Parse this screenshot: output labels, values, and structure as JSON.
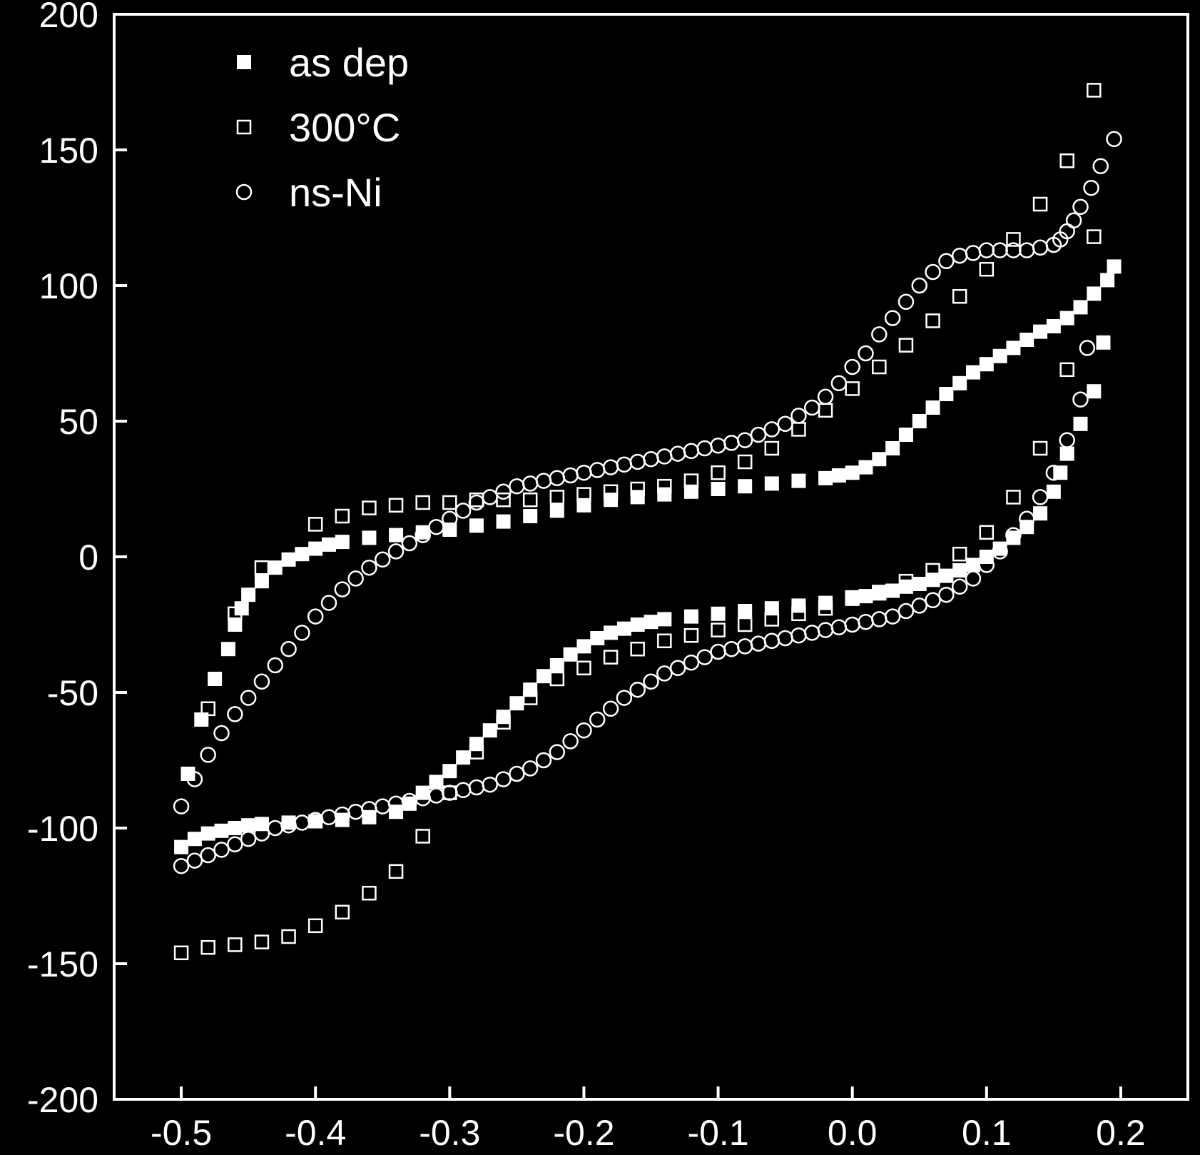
{
  "chart_data": {
    "type": "scatter",
    "xlim": [
      -0.55,
      0.25
    ],
    "ylim": [
      -200,
      200
    ],
    "x_ticks": [
      "-0.5",
      "-0.4",
      "-0.3",
      "-0.2",
      "-0.1",
      "0.0",
      "0.1",
      "0.2"
    ],
    "y_ticks": [
      "200",
      "150",
      "100",
      "50",
      "0",
      "-50",
      "-100",
      "-150",
      "-200"
    ],
    "grid": false,
    "legend_position": "top-left",
    "series": [
      {
        "name": "as dep",
        "marker": "filled-square",
        "points": [
          [
            -0.5,
            -107
          ],
          [
            -0.49,
            -104
          ],
          [
            -0.48,
            -102
          ],
          [
            -0.47,
            -101
          ],
          [
            -0.46,
            -100
          ],
          [
            -0.45,
            -99
          ],
          [
            -0.44,
            -98.5
          ],
          [
            -0.42,
            -98
          ],
          [
            -0.4,
            -97.5
          ],
          [
            -0.38,
            -97
          ],
          [
            -0.36,
            -96
          ],
          [
            -0.34,
            -94
          ],
          [
            -0.33,
            -91
          ],
          [
            -0.32,
            -87
          ],
          [
            -0.31,
            -83
          ],
          [
            -0.3,
            -79
          ],
          [
            -0.29,
            -74
          ],
          [
            -0.28,
            -69
          ],
          [
            -0.27,
            -64
          ],
          [
            -0.26,
            -59
          ],
          [
            -0.25,
            -54
          ],
          [
            -0.24,
            -49
          ],
          [
            -0.23,
            -44
          ],
          [
            -0.22,
            -40
          ],
          [
            -0.21,
            -36
          ],
          [
            -0.2,
            -33
          ],
          [
            -0.19,
            -30
          ],
          [
            -0.18,
            -28
          ],
          [
            -0.17,
            -26.5
          ],
          [
            -0.16,
            -25
          ],
          [
            -0.15,
            -24
          ],
          [
            -0.14,
            -23
          ],
          [
            -0.12,
            -22
          ],
          [
            -0.1,
            -21
          ],
          [
            -0.08,
            -20
          ],
          [
            -0.06,
            -19
          ],
          [
            -0.04,
            -18
          ],
          [
            -0.02,
            -17
          ],
          [
            0.0,
            -15.5
          ],
          [
            0.01,
            -14.5
          ],
          [
            0.02,
            -13.5
          ],
          [
            0.03,
            -12.5
          ],
          [
            0.04,
            -11
          ],
          [
            0.05,
            -10
          ],
          [
            0.06,
            -8.5
          ],
          [
            0.07,
            -7
          ],
          [
            0.08,
            -5
          ],
          [
            0.09,
            -3
          ],
          [
            0.1,
            0
          ],
          [
            0.11,
            3
          ],
          [
            0.12,
            7
          ],
          [
            0.13,
            11
          ],
          [
            0.14,
            16
          ],
          [
            0.15,
            24
          ],
          [
            0.155,
            31
          ],
          [
            0.16,
            38
          ],
          [
            0.17,
            49
          ],
          [
            0.18,
            61
          ],
          [
            0.187,
            79
          ],
          [
            0.195,
            107
          ],
          [
            0.19,
            102
          ],
          [
            0.18,
            97
          ],
          [
            0.17,
            92
          ],
          [
            0.16,
            88
          ],
          [
            0.15,
            85
          ],
          [
            0.14,
            83
          ],
          [
            0.13,
            80
          ],
          [
            0.12,
            77
          ],
          [
            0.11,
            74
          ],
          [
            0.1,
            71
          ],
          [
            0.09,
            68
          ],
          [
            0.08,
            64
          ],
          [
            0.07,
            60
          ],
          [
            0.06,
            55
          ],
          [
            0.05,
            50
          ],
          [
            0.04,
            45
          ],
          [
            0.03,
            40
          ],
          [
            0.02,
            36
          ],
          [
            0.01,
            33
          ],
          [
            0.0,
            31
          ],
          [
            -0.01,
            30
          ],
          [
            -0.02,
            29
          ],
          [
            -0.04,
            28
          ],
          [
            -0.06,
            27
          ],
          [
            -0.08,
            26
          ],
          [
            -0.1,
            25
          ],
          [
            -0.12,
            24
          ],
          [
            -0.14,
            23
          ],
          [
            -0.16,
            22
          ],
          [
            -0.18,
            21
          ],
          [
            -0.2,
            19
          ],
          [
            -0.22,
            17
          ],
          [
            -0.24,
            15
          ],
          [
            -0.26,
            13
          ],
          [
            -0.28,
            11.5
          ],
          [
            -0.3,
            10
          ],
          [
            -0.32,
            9
          ],
          [
            -0.34,
            8
          ],
          [
            -0.36,
            7
          ],
          [
            -0.38,
            5.5
          ],
          [
            -0.39,
            4.5
          ],
          [
            -0.4,
            3
          ],
          [
            -0.41,
            1
          ],
          [
            -0.42,
            -1
          ],
          [
            -0.43,
            -4
          ],
          [
            -0.44,
            -9
          ],
          [
            -0.45,
            -14
          ],
          [
            -0.455,
            -19
          ],
          [
            -0.46,
            -25
          ],
          [
            -0.465,
            -34
          ],
          [
            -0.475,
            -45
          ],
          [
            -0.485,
            -60
          ],
          [
            -0.495,
            -80
          ]
        ]
      },
      {
        "name": "300°C",
        "marker": "open-square",
        "points": [
          [
            -0.5,
            -146
          ],
          [
            -0.48,
            -144
          ],
          [
            -0.46,
            -143
          ],
          [
            -0.44,
            -142
          ],
          [
            -0.42,
            -140
          ],
          [
            -0.4,
            -136
          ],
          [
            -0.38,
            -131
          ],
          [
            -0.36,
            -124
          ],
          [
            -0.34,
            -116
          ],
          [
            -0.32,
            -103
          ],
          [
            -0.3,
            -87
          ],
          [
            -0.28,
            -72
          ],
          [
            -0.26,
            -61
          ],
          [
            -0.24,
            -52
          ],
          [
            -0.22,
            -45
          ],
          [
            -0.2,
            -41
          ],
          [
            -0.18,
            -37
          ],
          [
            -0.16,
            -34
          ],
          [
            -0.14,
            -31
          ],
          [
            -0.12,
            -29
          ],
          [
            -0.1,
            -27
          ],
          [
            -0.08,
            -25
          ],
          [
            -0.06,
            -23
          ],
          [
            -0.04,
            -21
          ],
          [
            -0.02,
            -19
          ],
          [
            0.0,
            -15
          ],
          [
            0.02,
            -13
          ],
          [
            0.04,
            -9
          ],
          [
            0.06,
            -5
          ],
          [
            0.08,
            1
          ],
          [
            0.1,
            9
          ],
          [
            0.12,
            22
          ],
          [
            0.14,
            40
          ],
          [
            0.16,
            69
          ],
          [
            0.18,
            118
          ],
          [
            0.18,
            172
          ],
          [
            0.16,
            146
          ],
          [
            0.14,
            130
          ],
          [
            0.12,
            117
          ],
          [
            0.1,
            106
          ],
          [
            0.08,
            96
          ],
          [
            0.06,
            87
          ],
          [
            0.04,
            78
          ],
          [
            0.02,
            70
          ],
          [
            0.0,
            62
          ],
          [
            -0.02,
            54
          ],
          [
            -0.04,
            47
          ],
          [
            -0.06,
            40
          ],
          [
            -0.08,
            35
          ],
          [
            -0.1,
            31
          ],
          [
            -0.12,
            28
          ],
          [
            -0.14,
            26
          ],
          [
            -0.16,
            25
          ],
          [
            -0.18,
            24
          ],
          [
            -0.2,
            23
          ],
          [
            -0.22,
            22
          ],
          [
            -0.24,
            21
          ],
          [
            -0.26,
            21
          ],
          [
            -0.28,
            21
          ],
          [
            -0.3,
            20
          ],
          [
            -0.32,
            20
          ],
          [
            -0.34,
            19
          ],
          [
            -0.36,
            18
          ],
          [
            -0.38,
            15
          ],
          [
            -0.4,
            12
          ],
          [
            -0.44,
            -4
          ],
          [
            -0.46,
            -21
          ],
          [
            -0.48,
            -56
          ]
        ]
      },
      {
        "name": "ns-Ni",
        "marker": "open-circle",
        "points": [
          [
            -0.5,
            -114
          ],
          [
            -0.49,
            -112
          ],
          [
            -0.48,
            -110
          ],
          [
            -0.47,
            -108
          ],
          [
            -0.46,
            -106
          ],
          [
            -0.45,
            -104
          ],
          [
            -0.44,
            -102
          ],
          [
            -0.43,
            -100
          ],
          [
            -0.42,
            -99
          ],
          [
            -0.41,
            -98
          ],
          [
            -0.4,
            -97
          ],
          [
            -0.39,
            -96
          ],
          [
            -0.38,
            -95
          ],
          [
            -0.37,
            -94
          ],
          [
            -0.36,
            -93
          ],
          [
            -0.35,
            -92
          ],
          [
            -0.34,
            -91
          ],
          [
            -0.33,
            -90
          ],
          [
            -0.32,
            -89
          ],
          [
            -0.31,
            -88
          ],
          [
            -0.3,
            -87
          ],
          [
            -0.29,
            -86
          ],
          [
            -0.28,
            -85
          ],
          [
            -0.27,
            -84
          ],
          [
            -0.26,
            -82
          ],
          [
            -0.25,
            -80
          ],
          [
            -0.24,
            -78
          ],
          [
            -0.23,
            -75
          ],
          [
            -0.22,
            -72
          ],
          [
            -0.21,
            -68
          ],
          [
            -0.2,
            -64
          ],
          [
            -0.19,
            -60
          ],
          [
            -0.18,
            -56
          ],
          [
            -0.17,
            -52
          ],
          [
            -0.16,
            -49
          ],
          [
            -0.15,
            -46
          ],
          [
            -0.14,
            -43
          ],
          [
            -0.13,
            -41
          ],
          [
            -0.12,
            -39
          ],
          [
            -0.11,
            -37
          ],
          [
            -0.1,
            -35
          ],
          [
            -0.09,
            -34
          ],
          [
            -0.08,
            -33
          ],
          [
            -0.07,
            -32
          ],
          [
            -0.06,
            -31
          ],
          [
            -0.05,
            -30
          ],
          [
            -0.04,
            -29
          ],
          [
            -0.03,
            -28
          ],
          [
            -0.02,
            -27
          ],
          [
            -0.01,
            -26
          ],
          [
            0.0,
            -25
          ],
          [
            0.01,
            -24
          ],
          [
            0.02,
            -23
          ],
          [
            0.03,
            -22
          ],
          [
            0.04,
            -20
          ],
          [
            0.05,
            -18
          ],
          [
            0.06,
            -16
          ],
          [
            0.07,
            -14
          ],
          [
            0.08,
            -11
          ],
          [
            0.09,
            -8
          ],
          [
            0.1,
            -3
          ],
          [
            0.11,
            2
          ],
          [
            0.12,
            8
          ],
          [
            0.13,
            14
          ],
          [
            0.14,
            22
          ],
          [
            0.15,
            31
          ],
          [
            0.16,
            43
          ],
          [
            0.17,
            58
          ],
          [
            0.175,
            77
          ],
          [
            0.195,
            154
          ],
          [
            0.185,
            144
          ],
          [
            0.178,
            136
          ],
          [
            0.17,
            129
          ],
          [
            0.165,
            124
          ],
          [
            0.16,
            120
          ],
          [
            0.155,
            117
          ],
          [
            0.15,
            115
          ],
          [
            0.14,
            114
          ],
          [
            0.13,
            113
          ],
          [
            0.12,
            113
          ],
          [
            0.11,
            113
          ],
          [
            0.1,
            113
          ],
          [
            0.09,
            112
          ],
          [
            0.08,
            111
          ],
          [
            0.07,
            109
          ],
          [
            0.06,
            105
          ],
          [
            0.05,
            100
          ],
          [
            0.04,
            94
          ],
          [
            0.03,
            88
          ],
          [
            0.02,
            82
          ],
          [
            0.01,
            75
          ],
          [
            0.0,
            70
          ],
          [
            -0.01,
            64
          ],
          [
            -0.02,
            59
          ],
          [
            -0.03,
            55
          ],
          [
            -0.04,
            52
          ],
          [
            -0.05,
            49
          ],
          [
            -0.06,
            47
          ],
          [
            -0.07,
            45
          ],
          [
            -0.08,
            43
          ],
          [
            -0.09,
            42
          ],
          [
            -0.1,
            41
          ],
          [
            -0.11,
            40
          ],
          [
            -0.12,
            39
          ],
          [
            -0.13,
            38
          ],
          [
            -0.14,
            37
          ],
          [
            -0.15,
            36
          ],
          [
            -0.16,
            35
          ],
          [
            -0.17,
            34
          ],
          [
            -0.18,
            33
          ],
          [
            -0.19,
            32
          ],
          [
            -0.2,
            31
          ],
          [
            -0.21,
            30
          ],
          [
            -0.22,
            29
          ],
          [
            -0.23,
            28
          ],
          [
            -0.24,
            27
          ],
          [
            -0.25,
            26
          ],
          [
            -0.26,
            24
          ],
          [
            -0.27,
            22
          ],
          [
            -0.28,
            20
          ],
          [
            -0.29,
            17
          ],
          [
            -0.3,
            14
          ],
          [
            -0.31,
            11
          ],
          [
            -0.32,
            8
          ],
          [
            -0.33,
            5
          ],
          [
            -0.34,
            2
          ],
          [
            -0.35,
            -1
          ],
          [
            -0.36,
            -4
          ],
          [
            -0.37,
            -8
          ],
          [
            -0.38,
            -12
          ],
          [
            -0.39,
            -17
          ],
          [
            -0.4,
            -22
          ],
          [
            -0.41,
            -28
          ],
          [
            -0.42,
            -34
          ],
          [
            -0.43,
            -40
          ],
          [
            -0.44,
            -46
          ],
          [
            -0.45,
            -52
          ],
          [
            -0.46,
            -58
          ],
          [
            -0.47,
            -65
          ],
          [
            -0.48,
            -73
          ],
          [
            -0.49,
            -82
          ],
          [
            -0.5,
            -92
          ]
        ]
      }
    ]
  }
}
